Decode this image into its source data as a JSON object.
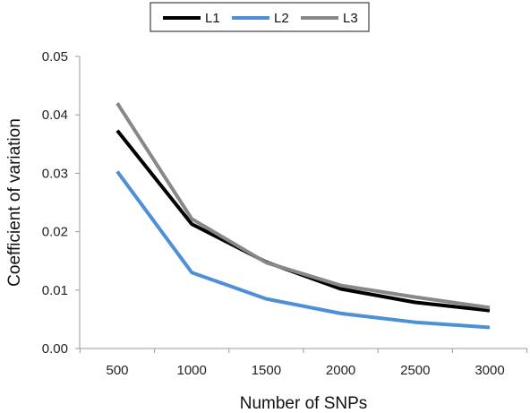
{
  "chart_data": {
    "type": "line",
    "xlabel": "Number of SNPs",
    "ylabel": "Coefficient of variation",
    "x": [
      500,
      1000,
      1500,
      2000,
      2500,
      3000
    ],
    "xticks": [
      "500",
      "1000",
      "1500",
      "2000",
      "2500",
      "3000"
    ],
    "yticks": [
      "0.00",
      "0.01",
      "0.02",
      "0.03",
      "0.04",
      "0.05"
    ],
    "ylim": [
      0,
      0.05
    ],
    "grid": false,
    "legend_position": "top",
    "series": [
      {
        "name": "L1",
        "color": "#000000",
        "values": [
          0.0373,
          0.0213,
          0.0148,
          0.0102,
          0.0079,
          0.0065
        ]
      },
      {
        "name": "L2",
        "color": "#4f8fd8",
        "values": [
          0.0303,
          0.013,
          0.0085,
          0.006,
          0.0045,
          0.0036
        ]
      },
      {
        "name": "L3",
        "color": "#888888",
        "values": [
          0.042,
          0.0222,
          0.0147,
          0.0108,
          0.0088,
          0.007
        ]
      }
    ]
  }
}
